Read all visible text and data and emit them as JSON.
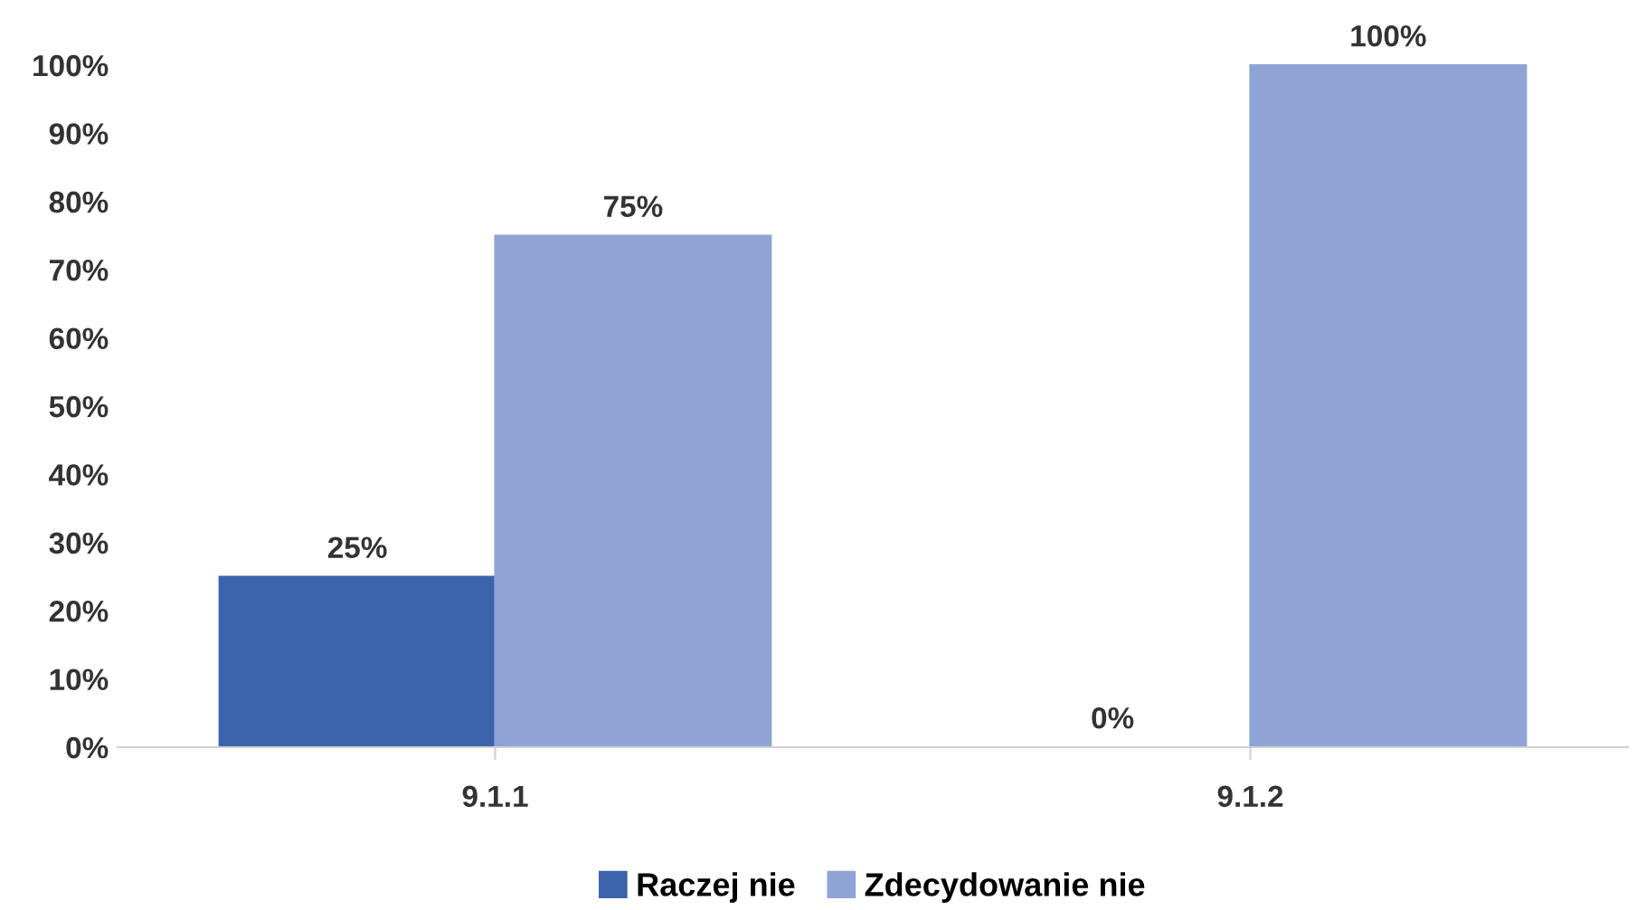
{
  "chart_data": {
    "type": "bar",
    "categories": [
      "9.1.1",
      "9.1.2"
    ],
    "series": [
      {
        "name": "Raczej nie",
        "color": "#3c64ac",
        "values": [
          25,
          0
        ],
        "value_labels": [
          "25%",
          "0%"
        ]
      },
      {
        "name": "Zdecydowanie nie",
        "color": "#8fa4d4",
        "values": [
          75,
          100
        ],
        "value_labels": [
          "75%",
          "100%"
        ]
      }
    ],
    "ylim": [
      0,
      100
    ],
    "yticks": [
      {
        "value": 0,
        "label": "0%"
      },
      {
        "value": 10,
        "label": "10%"
      },
      {
        "value": 20,
        "label": "20%"
      },
      {
        "value": 30,
        "label": "30%"
      },
      {
        "value": 40,
        "label": "40%"
      },
      {
        "value": 50,
        "label": "50%"
      },
      {
        "value": 60,
        "label": "60%"
      },
      {
        "value": 70,
        "label": "70%"
      },
      {
        "value": 80,
        "label": "80%"
      },
      {
        "value": 90,
        "label": "90%"
      },
      {
        "value": 100,
        "label": "100%"
      }
    ],
    "grid": false,
    "legend": "bottom"
  }
}
